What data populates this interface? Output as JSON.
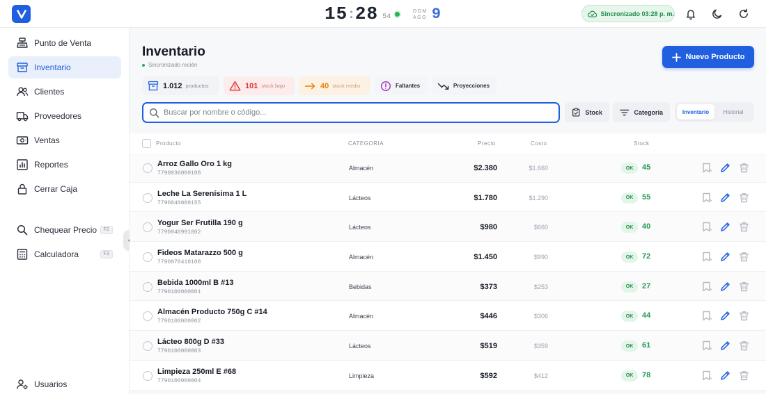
{
  "header": {
    "clock": {
      "hours": "15",
      "minutes": "28",
      "seconds": "54"
    },
    "date": {
      "weekday": "DOM",
      "month": "AGO",
      "day": "9"
    },
    "sync_status": "Sincronizado 03:28 p. m."
  },
  "sidebar": {
    "items": [
      {
        "label": "Punto de Venta",
        "icon": "cash-register-icon"
      },
      {
        "label": "Inventario",
        "icon": "archive-box-icon",
        "active": true
      },
      {
        "label": "Clientes",
        "icon": "users-icon"
      },
      {
        "label": "Proveedores",
        "icon": "truck-icon"
      },
      {
        "label": "Ventas",
        "icon": "banknote-icon"
      },
      {
        "label": "Reportes",
        "icon": "chart-icon"
      },
      {
        "label": "Cerrar Caja",
        "icon": "lock-icon"
      }
    ],
    "tools": [
      {
        "label": "Chequear Precio",
        "shortcut": "F2",
        "icon": "search-icon"
      },
      {
        "label": "Calculadora",
        "shortcut": "F3",
        "icon": "calculator-icon"
      }
    ],
    "footer": {
      "label": "Usuarios",
      "icon": "user-settings-icon"
    }
  },
  "main": {
    "title": "Inventario",
    "subtitle": "Sincronizado recién",
    "new_button": "Nuevo Producto",
    "stats": {
      "products": {
        "value": "1.012",
        "label": "productos"
      },
      "low": {
        "value": "101",
        "label": "stock bajo"
      },
      "medium": {
        "value": "40",
        "label": "stock medio"
      },
      "missing": {
        "label": "Faltantes"
      },
      "projections": {
        "label": "Proyecciones"
      }
    },
    "search_placeholder": "Buscar por nombre o código...",
    "filters": {
      "stock": "Stock",
      "category": "Categoría"
    },
    "view_tabs": {
      "inventory": "Inventario",
      "history": "Historial"
    },
    "columns": {
      "product": "Producto",
      "category": "CATEGORIA",
      "price": "Precio",
      "cost": "Costo",
      "stock": "Stock"
    },
    "rows": [
      {
        "name": "Arroz Gallo Oro 1 kg",
        "code": "7790036000108",
        "category": "Almacén",
        "price": "$2.380",
        "cost": "$1.660",
        "status": "OK",
        "stock": "45"
      },
      {
        "name": "Leche La Serenísima 1 L",
        "code": "7790040000155",
        "category": "Lácteos",
        "price": "$1.780",
        "cost": "$1.290",
        "status": "OK",
        "stock": "55"
      },
      {
        "name": "Yogur Ser Frutilla 190 g",
        "code": "7790040991002",
        "category": "Lácteos",
        "price": "$980",
        "cost": "$660",
        "status": "OK",
        "stock": "40"
      },
      {
        "name": "Fideos Matarazzo 500 g",
        "code": "7790070410108",
        "category": "Almacén",
        "price": "$1.450",
        "cost": "$990",
        "status": "OK",
        "stock": "72"
      },
      {
        "name": "Bebida 1000ml B #13",
        "code": "7790100000001",
        "category": "Bebidas",
        "price": "$373",
        "cost": "$253",
        "status": "OK",
        "stock": "27"
      },
      {
        "name": "Almacén Producto 750g C #14",
        "code": "7790100000002",
        "category": "Almacén",
        "price": "$446",
        "cost": "$306",
        "status": "OK",
        "stock": "44"
      },
      {
        "name": "Lácteo 800g D #33",
        "code": "7790100000003",
        "category": "Lácteos",
        "price": "$519",
        "cost": "$359",
        "status": "OK",
        "stock": "61"
      },
      {
        "name": "Limpieza 250ml E #68",
        "code": "7790100000004",
        "category": "Limpieza",
        "price": "$592",
        "cost": "$412",
        "status": "OK",
        "stock": "78"
      }
    ]
  },
  "colors": {
    "accent": "#1f5fe0",
    "success": "#1f9a4f",
    "danger": "#e03131",
    "warning": "#e8830c",
    "purple": "#9b2fb5"
  }
}
